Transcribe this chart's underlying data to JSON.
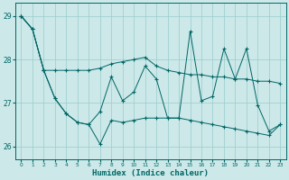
{
  "xlabel": "Humidex (Indice chaleur)",
  "bg_color": "#cce8e8",
  "line_color": "#006666",
  "grid_color": "#99cccc",
  "xlim": [
    -0.5,
    23.5
  ],
  "ylim": [
    25.7,
    29.3
  ],
  "yticks": [
    26,
    27,
    28,
    29
  ],
  "xticks": [
    0,
    1,
    2,
    3,
    4,
    5,
    6,
    7,
    8,
    9,
    10,
    11,
    12,
    13,
    14,
    15,
    16,
    17,
    18,
    19,
    20,
    21,
    22,
    23
  ],
  "series": [
    [
      29.0,
      28.7,
      27.75,
      27.75,
      27.75,
      27.75,
      27.75,
      27.8,
      27.9,
      27.95,
      28.0,
      28.05,
      27.85,
      27.75,
      27.7,
      27.65,
      27.65,
      27.6,
      27.6,
      27.55,
      27.55,
      27.5,
      27.5,
      27.45
    ],
    [
      29.0,
      28.7,
      27.75,
      27.1,
      26.75,
      26.55,
      26.5,
      26.8,
      27.6,
      27.05,
      27.25,
      27.85,
      27.55,
      26.65,
      26.65,
      28.65,
      27.05,
      27.15,
      28.25,
      27.55,
      28.25,
      26.95,
      26.35,
      26.5
    ],
    [
      29.0,
      28.7,
      27.75,
      27.1,
      26.75,
      26.55,
      26.5,
      26.05,
      26.6,
      26.55,
      26.6,
      26.65,
      26.65,
      26.65,
      26.65,
      26.6,
      26.55,
      26.5,
      26.45,
      26.4,
      26.35,
      26.3,
      26.25,
      26.5
    ]
  ]
}
